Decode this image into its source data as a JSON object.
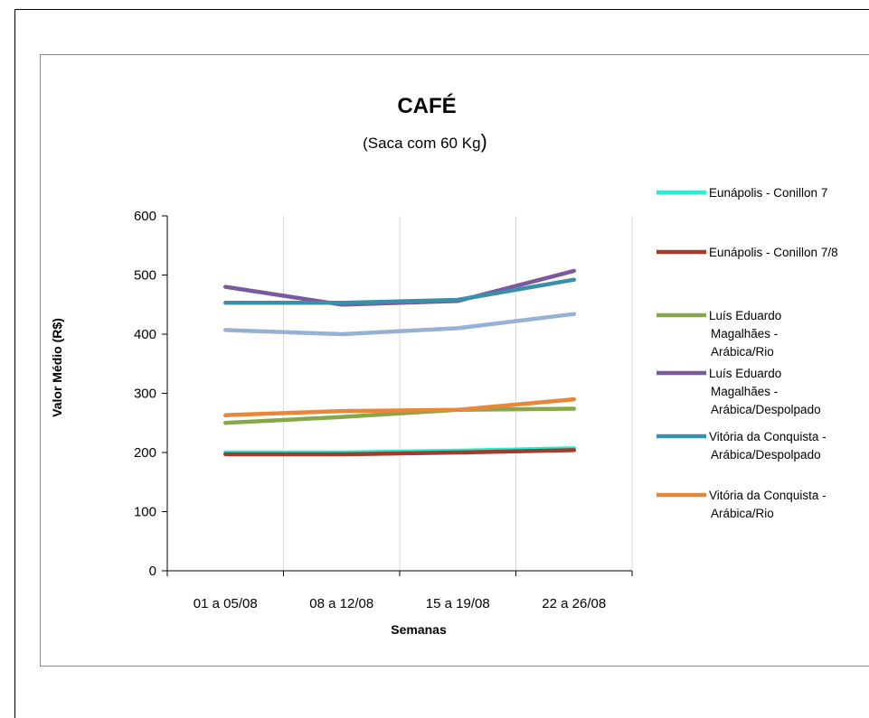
{
  "chart_data": {
    "type": "line",
    "title": "CAFÉ",
    "subtitle": "(Saca com 60 Kg)",
    "xlabel": "Semanas",
    "ylabel": "Valor Médio (R$)",
    "categories": [
      "01 a 05/08",
      "08 a 12/08",
      "15 a 19/08",
      "22 a 26/08"
    ],
    "ylim": [
      0,
      600
    ],
    "yticks": [
      "0",
      "100",
      "200",
      "300",
      "400",
      "500",
      "600"
    ],
    "grid": "vertical",
    "legend_position": "right",
    "series": [
      {
        "name": "Eunápolis - Conillon 7",
        "legend_lines": [
          "Eunápolis - Conillon 7"
        ],
        "values": [
          200,
          200,
          203,
          207
        ],
        "color": "#1ef2d0"
      },
      {
        "name": "Eunápolis - Conillon 7/8",
        "legend_lines": [
          "Eunápolis - Conillon 7/8"
        ],
        "values": [
          197,
          197,
          200,
          204
        ],
        "color": "#a33a2e"
      },
      {
        "name": "Luís Eduardo Magalhães - Arábica/Rio",
        "legend_lines": [
          "Luís Eduardo",
          "Magalhães -",
          "Arábica/Rio"
        ],
        "values": [
          250,
          260,
          272,
          274
        ],
        "color": "#86a84a"
      },
      {
        "name": "Luís Eduardo Magalhães - Arábica/Despolpado",
        "legend_lines": [
          "Luís Eduardo",
          "Magalhães -",
          "Arábica/Despolpado"
        ],
        "values": [
          480,
          450,
          456,
          507
        ],
        "color": "#7a5a9c"
      },
      {
        "name": "Vitória da Conquista - Arábica/Despolpado",
        "legend_lines": [
          "Vitória da Conquista -",
          "Arábica/Despolpado"
        ],
        "values": [
          453,
          453,
          458,
          492
        ],
        "color": "#3a90a8"
      },
      {
        "name": "Vitória da Conquista - Arábica/Rio",
        "legend_lines": [
          "Vitória da Conquista -",
          "Arábica/Rio"
        ],
        "values": [
          263,
          270,
          272,
          290
        ],
        "color": "#e8873a"
      },
      {
        "name": "",
        "legend_lines": [],
        "values": [
          407,
          400,
          410,
          434
        ],
        "color": "#97b0d6"
      }
    ]
  }
}
